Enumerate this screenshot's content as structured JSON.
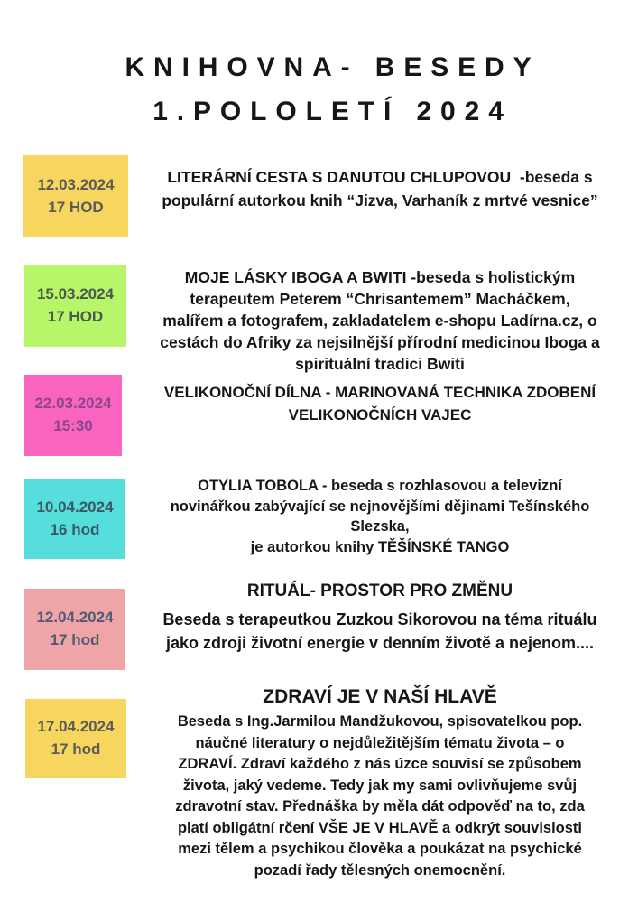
{
  "title": {
    "line1": "KNIHOVNA- BESEDY",
    "line2": "1.POLOLETÍ 2024"
  },
  "events": [
    {
      "date": "12.03.2024\n17 HOD",
      "block_color": "#F6D65F",
      "date_color": "#5B5B58",
      "text": "LITERÁRNÍ CESTA S DANUTOU CHLUPOVOU  -beseda s\npopulární autorkou knih “Jizva, Varhaník z mrtvé vesnice”"
    },
    {
      "date": "15.03.2024\n17 HOD",
      "block_color": "#B8F669",
      "date_color": "#4C594E",
      "text": "MOJE LÁSKY IBOGA A BWITI -beseda s holistickým\nterapeutem Peterem “Chrisantemem” Macháčkem,\nmalířem a fotografem, zakladatelem e-shopu Ladírna.cz, o\ncestách do Afriky za nejsilnější přírodní medicinou Iboga a\nspirituální tradici Bwiti"
    },
    {
      "date": "22.03.2024\n15:30",
      "block_color": "#F964BE",
      "date_color": "#8A4590",
      "text": "VELIKONOČNÍ DÍLNA - MARINOVANÁ TECHNIKA ZDOBENÍ\nVELIKONOČNÍCH VAJEC"
    },
    {
      "date": "10.04.2024\n16 hod",
      "block_color": "#56DEDC",
      "date_color": "#3C5763",
      "text": "OTYLIA TOBOLA - beseda s rozhlasovou a televizní\nnovinářkou zabývající se nejnovějšími dějinami Tešínského\nSlezska,\nje autorkou knihy TĚŠÍNSKÉ TANGO"
    },
    {
      "date": "12.04.2024\n17 hod",
      "block_color": "#EFA5A7",
      "date_color": "#4C5B72",
      "heading": "RITUÁL- PROSTOR PRO ZMĚNU",
      "text": "Beseda s terapeutkou Zuzkou Sikorovou na téma rituálu\njako zdroji životní energie v denním životě a nejenom...."
    },
    {
      "date": "17.04.2024\n17 hod",
      "block_color": "#F6D65F",
      "date_color": "#5B5B58",
      "heading": "ZDRAVÍ JE V NAŠÍ HLAVĚ",
      "text": "Beseda s Ing.Jarmilou Mandžukovou, spisovatelkou pop.\nnáučné literatury o nejdůležitějším tématu života – o\nZDRAVÍ. Zdraví každého z nás úzce souvisí se způsobem\nživota, jaký vedeme. Tedy jak my sami ovlivňujeme svůj\nzdravotní stav. Přednáška by měla dát odpověď na to, zda\nplatí obligátní rčení VŠE JE V HLAVĚ a odkrýt souvislosti\nmezi tělem a psychikou člověka a poukázat na psychické\npozadí řady tělesných onemocnění."
    }
  ]
}
